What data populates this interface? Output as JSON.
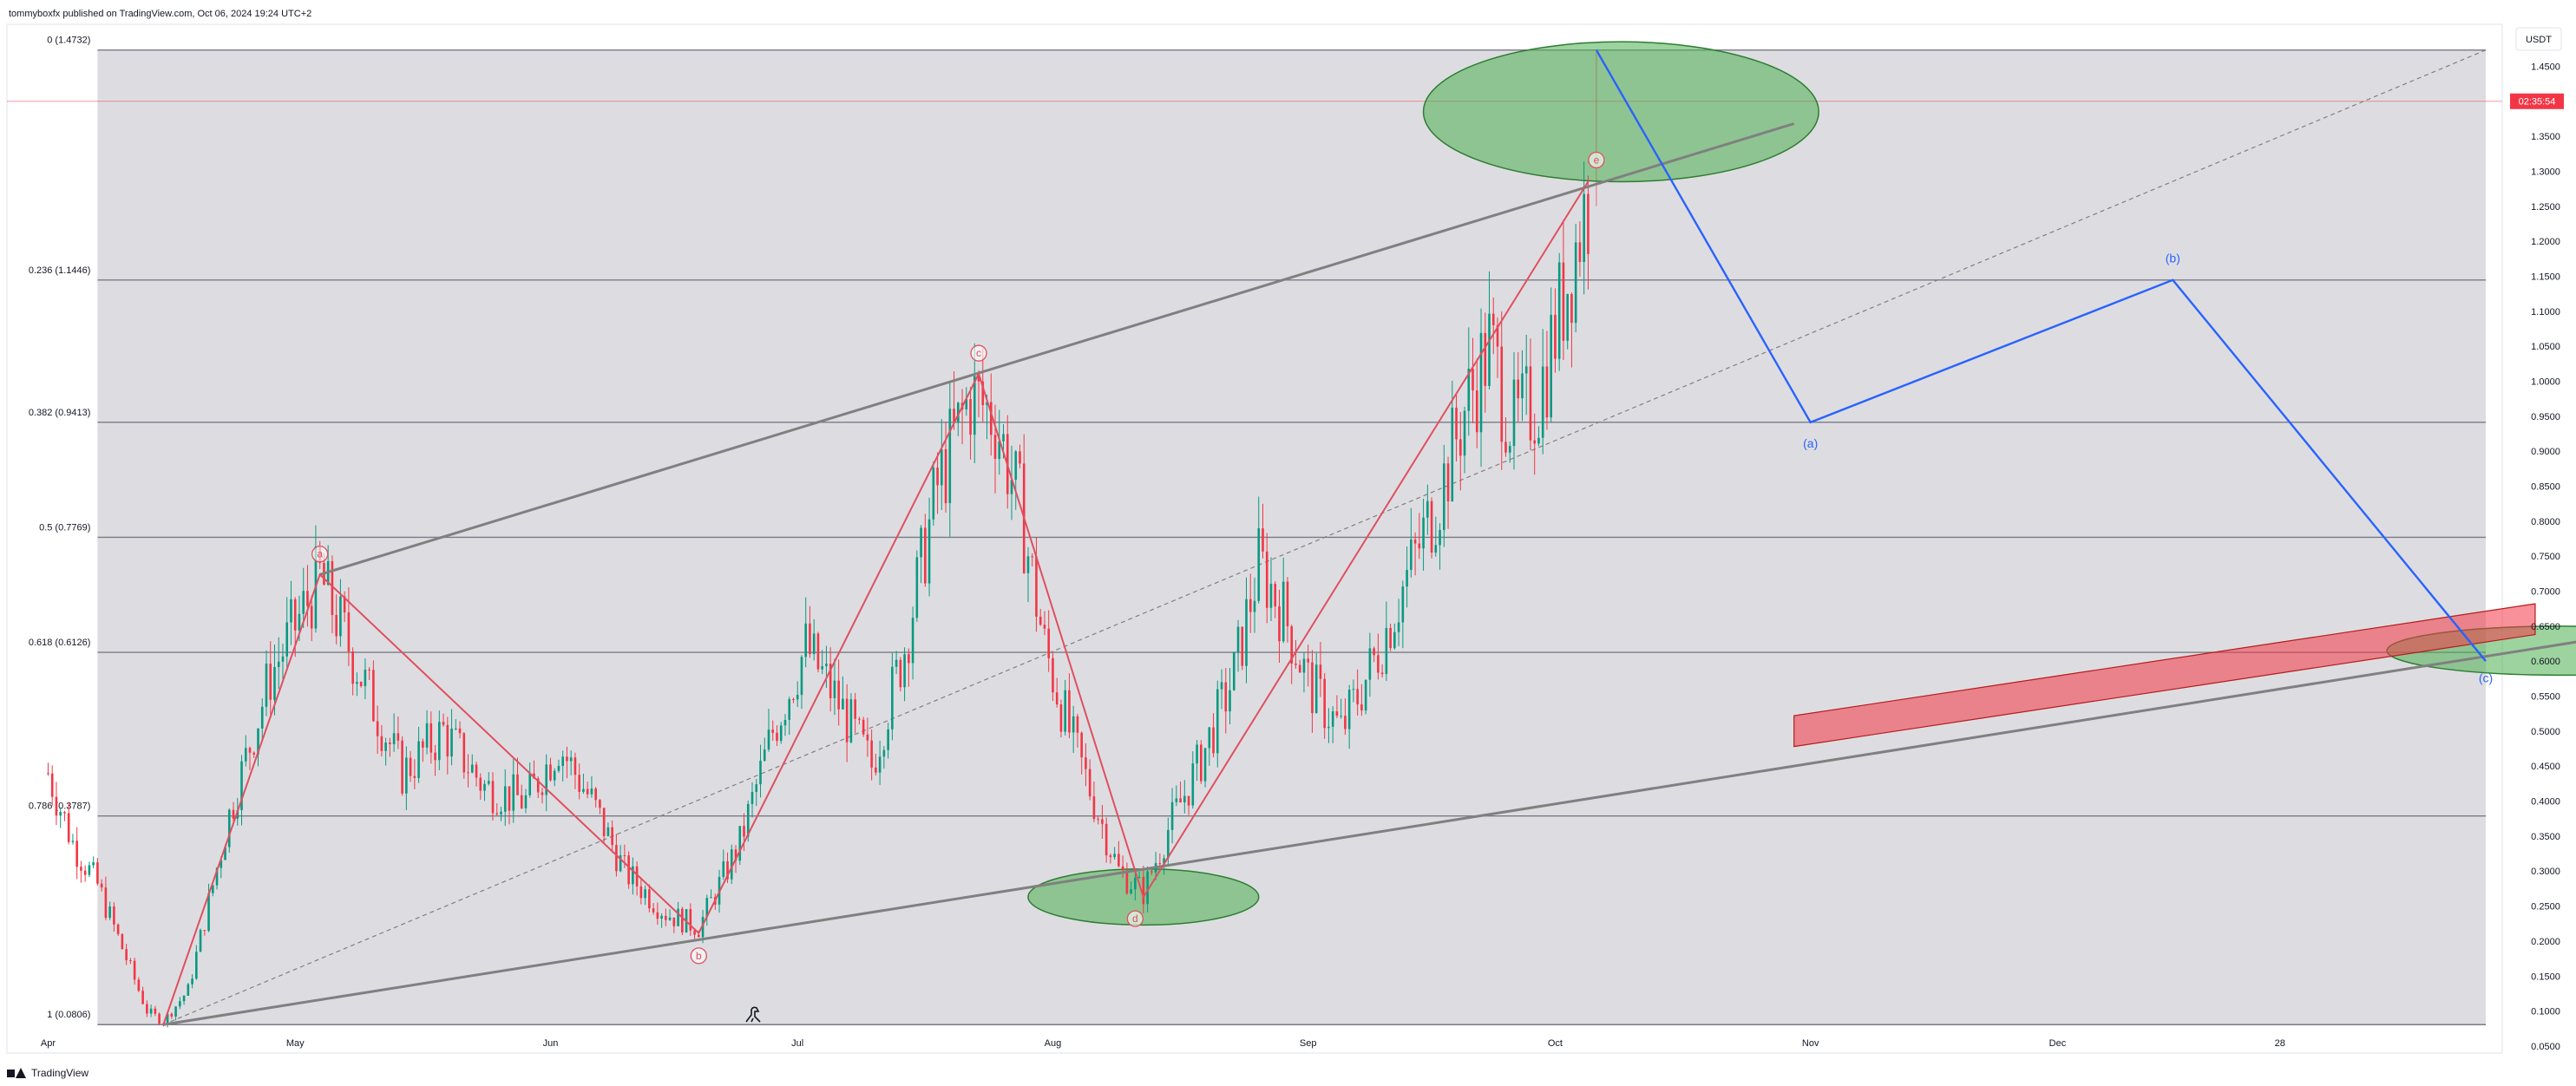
{
  "header": {
    "published": "tommyboxfx published on TradingView.com, Oct 06, 2024 19:24 UTC+2"
  },
  "footer": {
    "brand": "TradingView"
  },
  "colors": {
    "up": "#089981",
    "down": "#f23645",
    "wave": "#2962ff",
    "abcd": "#e04f5f",
    "channel": "#808080",
    "zone_fill": "#d9d9de",
    "green": "#4caf50",
    "red_box": "#f23645"
  },
  "chart_data": {
    "type": "candlestick",
    "currency": "USDT",
    "current_price_time": "02:35:54",
    "current_price": 1.4,
    "y_ticks": [
      1.5,
      1.45,
      1.4,
      1.35,
      1.3,
      1.25,
      1.2,
      1.15,
      1.1,
      1.05,
      1.0,
      0.95,
      0.9,
      0.85,
      0.8,
      0.75,
      0.7,
      0.65,
      0.6,
      0.55,
      0.5,
      0.45,
      0.4,
      0.35,
      0.3,
      0.25,
      0.2,
      0.15,
      0.1,
      0.05
    ],
    "y_tick_labels": [
      "1.5000",
      "1.4500",
      "1.4000",
      "1.3500",
      "1.3000",
      "1.2500",
      "1.2000",
      "1.1500",
      "1.1000",
      "1.0500",
      "1.0000",
      "0.9500",
      "0.9000",
      "0.8500",
      "0.8000",
      "0.7500",
      "0.7000",
      "0.6500",
      "0.6000",
      "0.5500",
      "0.5000",
      "0.4500",
      "0.4000",
      "0.3500",
      "0.3000",
      "0.2500",
      "0.2000",
      "0.1500",
      "0.1000",
      "0.0500"
    ],
    "ylim": [
      0.04,
      1.51
    ],
    "x_ticks": [
      {
        "label": "Apr",
        "day": 0
      },
      {
        "label": "May",
        "day": 30
      },
      {
        "label": "Jun",
        "day": 61
      },
      {
        "label": "Jul",
        "day": 91
      },
      {
        "label": "Aug",
        "day": 122
      },
      {
        "label": "Sep",
        "day": 153
      },
      {
        "label": "Oct",
        "day": 183
      },
      {
        "label": "Nov",
        "day": 214
      },
      {
        "label": "Dec",
        "day": 244
      },
      {
        "label": "28",
        "day": 271
      }
    ],
    "xlim": [
      -5,
      298
    ],
    "fib_levels": [
      {
        "ratio": "0",
        "price": 1.4732,
        "label": "0 (1.4732)"
      },
      {
        "ratio": "0.236",
        "price": 1.1446,
        "label": "0.236 (1.1446)"
      },
      {
        "ratio": "0.382",
        "price": 0.9413,
        "label": "0.382 (0.9413)"
      },
      {
        "ratio": "0.5",
        "price": 0.7769,
        "label": "0.5 (0.7769)"
      },
      {
        "ratio": "0.618",
        "price": 0.6126,
        "label": "0.618 (0.6126)"
      },
      {
        "ratio": "0.786",
        "price": 0.3787,
        "label": "0.786 (0.3787)"
      },
      {
        "ratio": "1",
        "price": 0.0806,
        "label": "1 (0.0806)"
      }
    ],
    "fib_zone": {
      "start_day": 6,
      "end_day": 296
    },
    "price_path": [
      {
        "day": 0,
        "price": 0.44
      },
      {
        "day": 3,
        "price": 0.34
      },
      {
        "day": 6,
        "price": 0.28
      },
      {
        "day": 9,
        "price": 0.19
      },
      {
        "day": 12,
        "price": 0.1
      },
      {
        "day": 14,
        "price": 0.085
      },
      {
        "day": 17,
        "price": 0.13
      },
      {
        "day": 22,
        "price": 0.38
      },
      {
        "day": 27,
        "price": 0.58
      },
      {
        "day": 33,
        "price": 0.72
      },
      {
        "day": 38,
        "price": 0.58
      },
      {
        "day": 43,
        "price": 0.44
      },
      {
        "day": 48,
        "price": 0.5
      },
      {
        "day": 53,
        "price": 0.42
      },
      {
        "day": 58,
        "price": 0.4
      },
      {
        "day": 62,
        "price": 0.48
      },
      {
        "day": 66,
        "price": 0.4
      },
      {
        "day": 70,
        "price": 0.3
      },
      {
        "day": 75,
        "price": 0.24
      },
      {
        "day": 79,
        "price": 0.22
      },
      {
        "day": 84,
        "price": 0.34
      },
      {
        "day": 88,
        "price": 0.5
      },
      {
        "day": 92,
        "price": 0.62
      },
      {
        "day": 96,
        "price": 0.54
      },
      {
        "day": 100,
        "price": 0.45
      },
      {
        "day": 104,
        "price": 0.62
      },
      {
        "day": 108,
        "price": 0.85
      },
      {
        "day": 112,
        "price": 0.98
      },
      {
        "day": 115,
        "price": 0.95
      },
      {
        "day": 118,
        "price": 0.82
      },
      {
        "day": 121,
        "price": 0.62
      },
      {
        "day": 124,
        "price": 0.5
      },
      {
        "day": 127,
        "price": 0.4
      },
      {
        "day": 130,
        "price": 0.3
      },
      {
        "day": 133,
        "price": 0.27
      },
      {
        "day": 136,
        "price": 0.36
      },
      {
        "day": 140,
        "price": 0.46
      },
      {
        "day": 144,
        "price": 0.58
      },
      {
        "day": 147,
        "price": 0.74
      },
      {
        "day": 150,
        "price": 0.67
      },
      {
        "day": 153,
        "price": 0.57
      },
      {
        "day": 157,
        "price": 0.5
      },
      {
        "day": 161,
        "price": 0.6
      },
      {
        "day": 165,
        "price": 0.72
      },
      {
        "day": 169,
        "price": 0.84
      },
      {
        "day": 172,
        "price": 0.96
      },
      {
        "day": 175,
        "price": 1.05
      },
      {
        "day": 178,
        "price": 0.93
      },
      {
        "day": 181,
        "price": 0.98
      },
      {
        "day": 184,
        "price": 1.12
      },
      {
        "day": 186,
        "price": 1.22
      },
      {
        "day": 187,
        "price": 1.26
      }
    ],
    "abcde_path": [
      {
        "label": "",
        "day": 14,
        "price": 0.0806
      },
      {
        "label": "a",
        "day": 33,
        "price": 0.7237
      },
      {
        "label": "b",
        "day": 79,
        "price": 0.2114
      },
      {
        "label": "c",
        "day": 113,
        "price": 1.0106
      },
      {
        "label": "d",
        "day": 133,
        "price": 0.2628
      },
      {
        "label": "e",
        "day": 187,
        "price": 1.2852
      }
    ],
    "circle_labels": [
      {
        "label": "a",
        "day": 33,
        "price": 0.753
      },
      {
        "label": "b",
        "day": 79,
        "price": 0.179
      },
      {
        "label": "c",
        "day": 113,
        "price": 1.04
      },
      {
        "label": "d",
        "day": 132,
        "price": 0.232
      },
      {
        "label": "e",
        "day": 188,
        "price": 1.316
      }
    ],
    "forecast_path": [
      {
        "label": "",
        "day": 188,
        "price": 1.4732
      },
      {
        "label": "(a)",
        "day": 214,
        "price": 0.9413
      },
      {
        "label": "(b)",
        "day": 258,
        "price": 1.1446
      },
      {
        "label": "(c)",
        "day": 296,
        "price": 0.6
      }
    ],
    "forecast_labels": [
      {
        "label": "(a)",
        "day": 214,
        "price": 0.905
      },
      {
        "label": "(b)",
        "day": 258,
        "price": 1.17
      },
      {
        "label": "(c)",
        "day": 296,
        "price": 0.57
      }
    ],
    "upper_channel": [
      {
        "day": 33,
        "price": 0.7237
      },
      {
        "day": 212,
        "price": 1.368
      }
    ],
    "lower_channel": [
      {
        "day": 14,
        "price": 0.0806
      },
      {
        "day": 432,
        "price": 0.8606
      }
    ],
    "fib_trend_line": [
      {
        "day": 14,
        "price": 0.0806
      },
      {
        "day": 296,
        "price": 1.4732
      }
    ],
    "vertical_marker_day": 188,
    "green_ellipses": [
      {
        "day": 191,
        "price": 1.385,
        "rx_days": 24,
        "ry_price": 0.1
      },
      {
        "day": 133,
        "price": 0.263,
        "rx_days": 14,
        "ry_price": 0.04
      },
      {
        "day": 305,
        "price": 0.615,
        "rx_days": 21,
        "ry_price": 0.035
      }
    ],
    "red_box": {
      "start_day": 212,
      "end_day": 302,
      "start_price": 0.5,
      "end_price": 0.66,
      "half_height_price": 0.022
    }
  }
}
